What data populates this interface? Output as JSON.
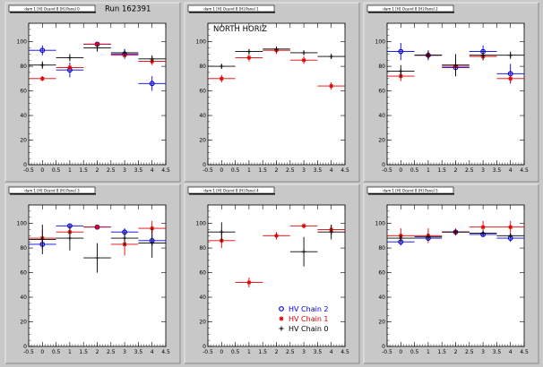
{
  "run_label": "Run 162391",
  "colors": {
    "chain2": "#0000e0",
    "chain1": "#e00000",
    "chain0": "#000000",
    "frame_bg": "#ffffff",
    "pad_bg": "#c8c8c8"
  },
  "legend": {
    "entries": [
      {
        "label": "HV Chain 2",
        "color": "#0000e0",
        "marker": "circle"
      },
      {
        "label": "HV Chain 1",
        "color": "#e00000",
        "marker": "star"
      },
      {
        "label": "HV Chain 0",
        "color": "#000000",
        "marker": "cross"
      }
    ]
  },
  "chart_data": [
    {
      "type": "scatter",
      "pad_title": "dam 1 [H] Ocand 8 [H] Panel 0",
      "annotation": "",
      "xlim": [
        -0.5,
        4.5
      ],
      "ylim": [
        0,
        115
      ],
      "xticks": [
        "-0.5",
        "0",
        "0.5",
        "1",
        "1.5",
        "2",
        "2.5",
        "3",
        "3.5",
        "4",
        "4.5"
      ],
      "yticks": [
        "0",
        "20",
        "40",
        "60",
        "80",
        "100"
      ],
      "series": [
        {
          "name": "HV Chain 2",
          "points": [
            [
              0,
              93,
              0.5,
              4
            ],
            [
              1,
              77,
              0.5,
              6
            ],
            [
              2,
              98,
              0.5,
              1
            ],
            [
              3,
              90,
              0.5,
              4
            ],
            [
              4,
              66,
              0.5,
              6
            ]
          ]
        },
        {
          "name": "HV Chain 1",
          "points": [
            [
              0,
              70,
              0.5,
              2
            ],
            [
              1,
              79,
              0.5,
              2
            ],
            [
              2,
              98,
              0.5,
              1
            ],
            [
              3,
              89,
              0.5,
              2
            ],
            [
              4,
              84,
              0.5,
              3
            ]
          ]
        },
        {
          "name": "HV Chain 0",
          "points": [
            [
              0,
              81,
              0.5,
              3
            ],
            [
              1,
              87,
              0.5,
              3
            ],
            [
              2,
              95,
              0.5,
              3
            ],
            [
              3,
              91,
              0.5,
              3
            ],
            [
              4,
              86,
              0.5,
              3
            ]
          ]
        }
      ]
    },
    {
      "type": "scatter",
      "pad_title": "dam 1 [H] Ocand 8 [H] Panel 1",
      "annotation": "NORTH HORIZ",
      "xlim": [
        -0.5,
        4.5
      ],
      "ylim": [
        0,
        115
      ],
      "xticks": [
        "-0.5",
        "0",
        "0.5",
        "1",
        "1.5",
        "2",
        "2.5",
        "3",
        "3.5",
        "4",
        "4.5"
      ],
      "yticks": [
        "0",
        "20",
        "40",
        "60",
        "80",
        "100"
      ],
      "series": [
        {
          "name": "HV Chain 1",
          "points": [
            [
              0,
              70,
              0.5,
              3
            ],
            [
              1,
              87,
              0.5,
              3
            ],
            [
              2,
              93,
              0.5,
              3
            ],
            [
              3,
              85,
              0.5,
              3
            ],
            [
              4,
              64,
              0.5,
              3
            ]
          ]
        },
        {
          "name": "HV Chain 0",
          "points": [
            [
              0,
              80,
              0.5,
              2
            ],
            [
              1,
              92,
              0.5,
              2
            ],
            [
              2,
              94,
              0.5,
              2
            ],
            [
              3,
              91,
              0.5,
              2
            ],
            [
              4,
              88,
              0.5,
              2
            ]
          ]
        }
      ]
    },
    {
      "type": "scatter",
      "pad_title": "dam 1 [H] Ocand 8 [H] Panel 2",
      "annotation": "",
      "xlim": [
        -0.5,
        4.5
      ],
      "ylim": [
        0,
        115
      ],
      "xticks": [
        "-0.5",
        "0",
        "0.5",
        "1",
        "1.5",
        "2",
        "2.5",
        "3",
        "3.5",
        "4",
        "4.5"
      ],
      "yticks": [
        "0",
        "20",
        "40",
        "60",
        "80",
        "100"
      ],
      "series": [
        {
          "name": "HV Chain 2",
          "points": [
            [
              0,
              92,
              0.5,
              7
            ],
            [
              1,
              89,
              0.5,
              3
            ],
            [
              2,
              79,
              0.5,
              7
            ],
            [
              3,
              92,
              0.5,
              5
            ],
            [
              4,
              74,
              0.5,
              8
            ]
          ]
        },
        {
          "name": "HV Chain 1",
          "points": [
            [
              0,
              72,
              0.5,
              4
            ],
            [
              1,
              89,
              0.5,
              3
            ],
            [
              2,
              80,
              0.5,
              3
            ],
            [
              3,
              88,
              0.5,
              3
            ],
            [
              4,
              70,
              0.5,
              3
            ]
          ]
        },
        {
          "name": "HV Chain 0",
          "points": [
            [
              0,
              76,
              0.5,
              5
            ],
            [
              1,
              89,
              0.5,
              4
            ],
            [
              2,
              81,
              0.5,
              9
            ],
            [
              3,
              89,
              0.5,
              4
            ],
            [
              4,
              89,
              0.5,
              3
            ]
          ]
        }
      ]
    },
    {
      "type": "scatter",
      "pad_title": "dam 1 [H] Ocand 8 [H] Panel 3",
      "annotation": "",
      "xlim": [
        -0.5,
        4.5
      ],
      "ylim": [
        0,
        115
      ],
      "xticks": [
        "-0.5",
        "0",
        "0.5",
        "1",
        "1.5",
        "2",
        "2.5",
        "3",
        "3.5",
        "4",
        "4.5"
      ],
      "yticks": [
        "0",
        "20",
        "40",
        "60",
        "80",
        "100"
      ],
      "series": [
        {
          "name": "HV Chain 2",
          "points": [
            [
              0,
              83,
              0.5,
              4
            ],
            [
              1,
              98,
              0.5,
              2
            ],
            [
              2,
              97,
              0.5,
              2
            ],
            [
              3,
              93,
              0.5,
              3
            ],
            [
              4,
              86,
              0.5,
              4
            ]
          ]
        },
        {
          "name": "HV Chain 1",
          "points": [
            [
              0,
              88,
              0.5,
              7
            ],
            [
              1,
              93,
              0.5,
              5
            ],
            [
              2,
              97,
              0.5,
              2
            ],
            [
              3,
              83,
              0.5,
              9
            ],
            [
              4,
              96,
              0.5,
              6
            ]
          ]
        },
        {
          "name": "HV Chain 0",
          "points": [
            [
              0,
              87,
              0.5,
              12
            ],
            [
              1,
              88,
              0.5,
              10
            ],
            [
              2,
              72,
              0.5,
              12
            ],
            [
              3,
              88,
              0.5,
              6
            ],
            [
              4,
              84,
              0.5,
              12
            ]
          ]
        }
      ]
    },
    {
      "type": "scatter",
      "pad_title": "dam 1 [H] Ocand 8 [H] Panel 4",
      "annotation": "",
      "xlim": [
        -0.5,
        4.5
      ],
      "ylim": [
        0,
        115
      ],
      "xticks": [
        "-0.5",
        "0",
        "0.5",
        "1",
        "1.5",
        "2",
        "2.5",
        "3",
        "3.5",
        "4",
        "4.5"
      ],
      "yticks": [
        "0",
        "20",
        "40",
        "60",
        "80",
        "100"
      ],
      "series": [
        {
          "name": "HV Chain 1",
          "points": [
            [
              0,
              86,
              0.5,
              6
            ],
            [
              1,
              52,
              0.5,
              4
            ],
            [
              2,
              90,
              0.5,
              3
            ],
            [
              3,
              98,
              0.5,
              2
            ],
            [
              4,
              95,
              0.5,
              4
            ]
          ]
        },
        {
          "name": "HV Chain 0",
          "points": [
            [
              0,
              93,
              0.5,
              8
            ],
            [
              3,
              77,
              0.5,
              12
            ],
            [
              4,
              93,
              0.5,
              6
            ]
          ]
        }
      ]
    },
    {
      "type": "scatter",
      "pad_title": "dam 1 [H] Ocand 8 [H] Panel 5",
      "annotation": "",
      "xlim": [
        -0.5,
        4.5
      ],
      "ylim": [
        0,
        115
      ],
      "xticks": [
        "-0.5",
        "0",
        "0.5",
        "1",
        "1.5",
        "2",
        "2.5",
        "3",
        "3.5",
        "4",
        "4.5"
      ],
      "yticks": [
        "0",
        "20",
        "40",
        "60",
        "80",
        "100"
      ],
      "series": [
        {
          "name": "HV Chain 2",
          "points": [
            [
              0,
              85,
              0.5,
              3
            ],
            [
              1,
              88,
              0.5,
              2
            ],
            [
              2,
              93,
              0.5,
              2
            ],
            [
              3,
              91,
              0.5,
              2
            ],
            [
              4,
              88,
              0.5,
              3
            ]
          ]
        },
        {
          "name": "HV Chain 1",
          "points": [
            [
              0,
              90,
              0.5,
              6
            ],
            [
              1,
              90,
              0.5,
              6
            ],
            [
              2,
              93,
              0.5,
              3
            ],
            [
              3,
              97,
              0.5,
              5
            ],
            [
              4,
              97,
              0.5,
              5
            ]
          ]
        },
        {
          "name": "HV Chain 0",
          "points": [
            [
              0,
              88,
              0.5,
              3
            ],
            [
              1,
              89,
              0.5,
              3
            ],
            [
              2,
              93,
              0.5,
              2
            ],
            [
              3,
              92,
              0.5,
              2
            ],
            [
              4,
              90,
              0.5,
              2
            ]
          ]
        }
      ]
    }
  ]
}
